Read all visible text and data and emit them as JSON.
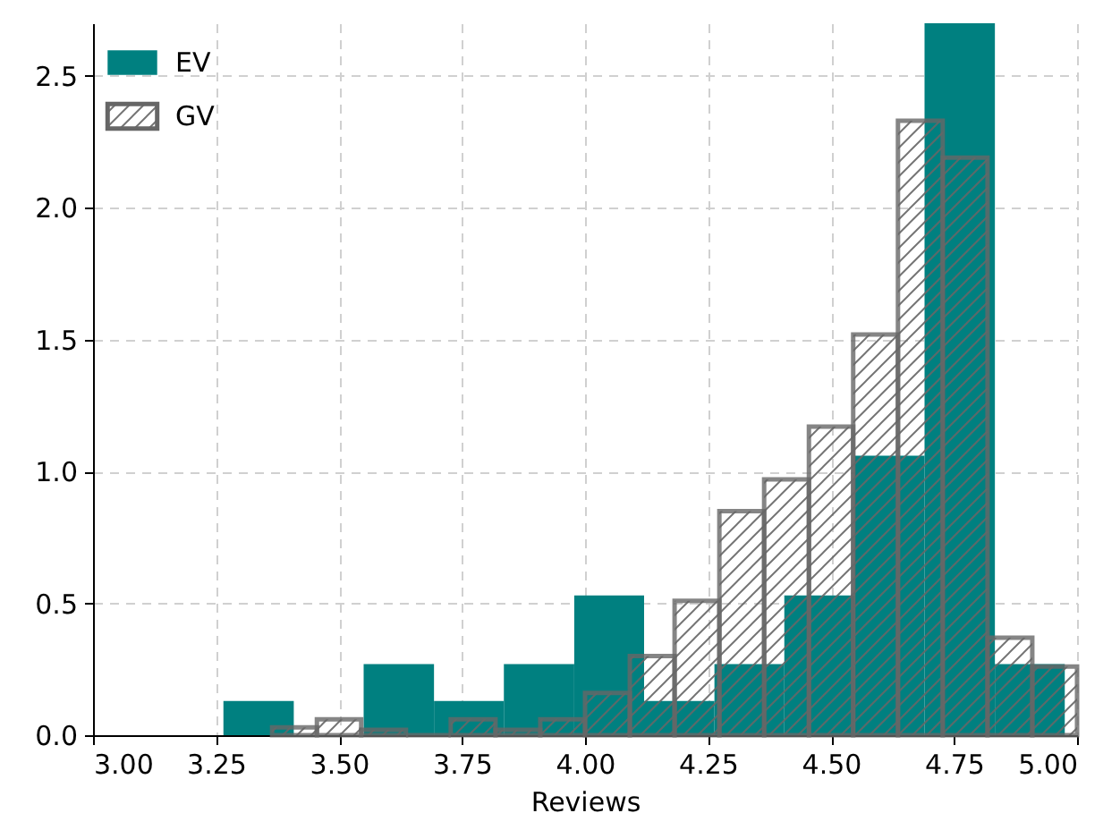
{
  "chart_data": {
    "type": "histogram",
    "xlabel": "Reviews",
    "xlim": [
      3.0,
      5.0
    ],
    "ylim": [
      0,
      2.7
    ],
    "xticks": [
      {
        "value": 3.0,
        "label": "3.00"
      },
      {
        "value": 3.25,
        "label": "3.25"
      },
      {
        "value": 3.5,
        "label": "3.50"
      },
      {
        "value": 3.75,
        "label": "3.75"
      },
      {
        "value": 4.0,
        "label": "4.00"
      },
      {
        "value": 4.25,
        "label": "4.25"
      },
      {
        "value": 4.5,
        "label": "4.50"
      },
      {
        "value": 4.75,
        "label": "4.75"
      },
      {
        "value": 5.0,
        "label": "5.00"
      }
    ],
    "yticks": [
      {
        "value": 0,
        "label": "0.0"
      },
      {
        "value": 0.5,
        "label": "0.5"
      },
      {
        "value": 1.0,
        "label": "1.0"
      },
      {
        "value": 1.5,
        "label": "1.5"
      },
      {
        "value": 2.0,
        "label": "2.0"
      },
      {
        "value": 2.5,
        "label": "2.5"
      }
    ],
    "grid": true,
    "legend": "top left",
    "bins": [
      3.265,
      3.408,
      3.55,
      3.693,
      3.835,
      3.978,
      4.12,
      4.263,
      4.405,
      4.548,
      4.69,
      4.833,
      4.975
    ],
    "series": [
      {
        "name": "EV",
        "color": "#008080",
        "values": [
          0.13,
          0,
          0.27,
          0.13,
          0.27,
          0.53,
          0.13,
          0.27,
          0.53,
          1.06,
          2.7,
          0.27
        ]
      },
      {
        "name": "GV",
        "color": "#666666",
        "bins": [
          3.364,
          3.455,
          3.545,
          3.636,
          3.727,
          3.818,
          3.909,
          4.0,
          4.091,
          4.182,
          4.273,
          4.364,
          4.455,
          4.545,
          4.636,
          4.727,
          4.818,
          4.909,
          5.0
        ],
        "values": [
          0.03,
          0.06,
          0.02,
          0,
          0.06,
          0.02,
          0.06,
          0.16,
          0.3,
          0.51,
          0.85,
          0.97,
          1.17,
          1.52,
          2.33,
          2.19,
          0.37,
          0.26
        ]
      }
    ]
  }
}
